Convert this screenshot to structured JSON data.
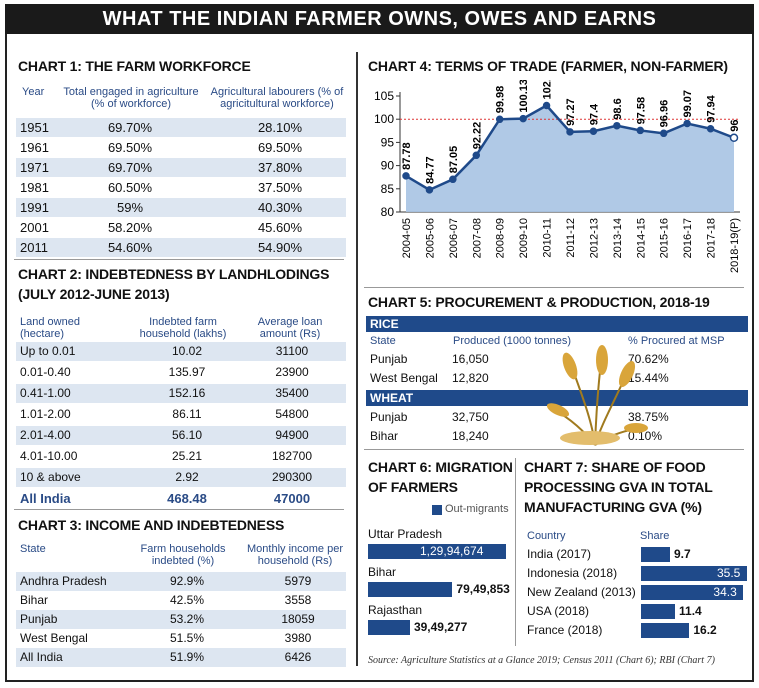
{
  "banner": "WHAT THE INDIAN FARMER OWNS, OWES AND EARNS",
  "chart1": {
    "title": "CHART 1: THE FARM WORKFORCE",
    "headers": [
      "Year",
      "Total engaged in agriculture (% of workforce)",
      "Agricultural labourers (% of agricitultural workforce)"
    ],
    "rows": [
      [
        "1951",
        "69.70%",
        "28.10%"
      ],
      [
        "1961",
        "69.50%",
        "69.50%"
      ],
      [
        "1971",
        "69.70%",
        "37.80%"
      ],
      [
        "1981",
        "60.50%",
        "37.50%"
      ],
      [
        "1991",
        "59%",
        "40.30%"
      ],
      [
        "2001",
        "58.20%",
        "45.60%"
      ],
      [
        "2011",
        "54.60%",
        "54.90%"
      ]
    ]
  },
  "chart2": {
    "title_line1": "CHART 2: INDEBTEDNESS BY LANDHLODINGS",
    "title_line2": "(JULY 2012-JUNE 2013)",
    "headers": [
      "Land owned (hectare)",
      "Indebted farm household (lakhs)",
      "Average loan amount (Rs)"
    ],
    "rows": [
      [
        "Up to 0.01",
        "10.02",
        "31100"
      ],
      [
        "0.01-0.40",
        "135.97",
        "23900"
      ],
      [
        "0.41-1.00",
        "152.16",
        "35400"
      ],
      [
        "1.01-2.00",
        "86.11",
        "54800"
      ],
      [
        "2.01-4.00",
        "56.10",
        "94900"
      ],
      [
        "4.01-10.00",
        "25.21",
        "182700"
      ],
      [
        "10 & above",
        "2.92",
        "290300"
      ]
    ],
    "total": [
      "All India",
      "468.48",
      "47000"
    ]
  },
  "chart3": {
    "title": "CHART 3: INCOME AND INDEBTEDNESS",
    "headers": [
      "State",
      "Farm households indebted (%)",
      "Monthly income per household (Rs)"
    ],
    "rows": [
      [
        "Andhra Pradesh",
        "92.9%",
        "5979"
      ],
      [
        "Bihar",
        "42.5%",
        "3558"
      ],
      [
        "Punjab",
        "53.2%",
        "18059"
      ],
      [
        "West Bengal",
        "51.5%",
        "3980"
      ],
      [
        "All India",
        "51.9%",
        "6426"
      ]
    ]
  },
  "chart5": {
    "title": "CHART 5: PROCUREMENT & PRODUCTION, 2018-19",
    "rice_label": "RICE",
    "wheat_label": "WHEAT",
    "headers": [
      "State",
      "Produced (1000 tonnes)",
      "% Procured at MSP"
    ],
    "rice_rows": [
      [
        "Punjab",
        "16,050",
        "70.62%"
      ],
      [
        "West Bengal",
        "12,820",
        "15.44%"
      ]
    ],
    "wheat_rows": [
      [
        "Punjab",
        "32,750",
        "38.75%"
      ],
      [
        "Bihar",
        "18,240",
        "0.10%"
      ]
    ]
  },
  "chart6": {
    "title_line1": "CHART 6: MIGRATION",
    "title_line2": "OF FARMERS",
    "legend": "Out-migrants"
  },
  "chart7": {
    "title_line1": "CHART 7: SHARE OF FOOD",
    "title_line2": "PROCESSING GVA IN TOTAL",
    "title_line3": "MANUFACTURING GVA (%)",
    "col_country": "Country",
    "col_share": "Share"
  },
  "source": "Source: Agriculture Statistics at a Glance 2019; Census 2011 (Chart 6); RBI (Chart 7)",
  "chart_data": [
    {
      "chart": "chart4",
      "type": "area",
      "title": "CHART 4: TERMS OF TRADE (FARMER, NON-FARMER)",
      "categories": [
        "2004-05",
        "2005-06",
        "2006-07",
        "2007-08",
        "2008-09",
        "2009-10",
        "2010-11",
        "2011-12",
        "2012-13",
        "2013-14",
        "2014-15",
        "2015-16",
        "2016-17",
        "2017-18",
        "2018-19(P)"
      ],
      "values": [
        87.78,
        84.77,
        87.05,
        92.22,
        99.98,
        100.13,
        102.95,
        97.27,
        97.4,
        98.6,
        97.58,
        96.96,
        99.07,
        97.94,
        96
      ],
      "ylim": [
        80,
        105
      ],
      "yticks": [
        80,
        85,
        90,
        95,
        100,
        105
      ],
      "reference_line": 100,
      "color": "#1f4a8a",
      "fill": "#a7c3e3"
    },
    {
      "chart": "chart6",
      "type": "bar",
      "orientation": "horizontal",
      "categories": [
        "Uttar Pradesh",
        "Bihar",
        "Rajasthan"
      ],
      "values": [
        12994674,
        7949853,
        3949277
      ],
      "labels": [
        "1,29,94,674",
        "79,49,853",
        "39,49,277"
      ],
      "series_name": "Out-migrants",
      "color": "#1f4a8a"
    },
    {
      "chart": "chart7",
      "type": "bar",
      "orientation": "horizontal",
      "categories": [
        "India (2017)",
        "Indonesia (2018)",
        "New Zealand (2013)",
        "USA (2018)",
        "France (2018)"
      ],
      "values": [
        9.7,
        35.5,
        34.3,
        11.4,
        16.2
      ],
      "color": "#1f4a8a"
    }
  ]
}
